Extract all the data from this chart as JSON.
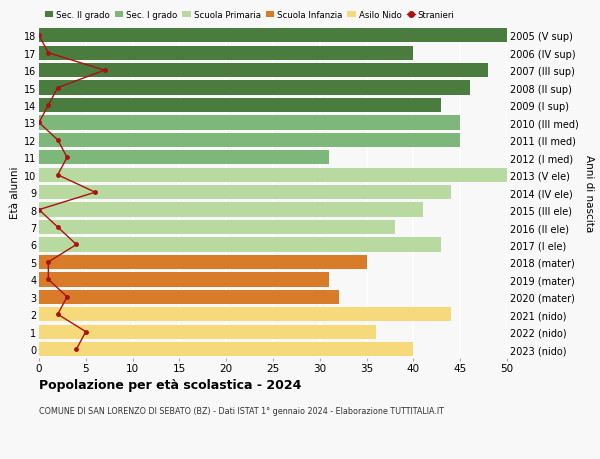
{
  "ages": [
    18,
    17,
    16,
    15,
    14,
    13,
    12,
    11,
    10,
    9,
    8,
    7,
    6,
    5,
    4,
    3,
    2,
    1,
    0
  ],
  "years": [
    "2005 (V sup)",
    "2006 (IV sup)",
    "2007 (III sup)",
    "2008 (II sup)",
    "2009 (I sup)",
    "2010 (III med)",
    "2011 (II med)",
    "2012 (I med)",
    "2013 (V ele)",
    "2014 (IV ele)",
    "2015 (III ele)",
    "2016 (II ele)",
    "2017 (I ele)",
    "2018 (mater)",
    "2019 (mater)",
    "2020 (mater)",
    "2021 (nido)",
    "2022 (nido)",
    "2023 (nido)"
  ],
  "bar_values": [
    50,
    40,
    48,
    46,
    43,
    45,
    45,
    31,
    50,
    44,
    41,
    38,
    43,
    35,
    31,
    32,
    44,
    36,
    40
  ],
  "bar_colors": [
    "#4a7c3f",
    "#4a7c3f",
    "#4a7c3f",
    "#4a7c3f",
    "#4a7c3f",
    "#7db87a",
    "#7db87a",
    "#7db87a",
    "#b8d9a0",
    "#b8d9a0",
    "#b8d9a0",
    "#b8d9a0",
    "#b8d9a0",
    "#d97c2a",
    "#d97c2a",
    "#d97c2a",
    "#f5d97a",
    "#f5d97a",
    "#f5d97a"
  ],
  "stranieri_values": [
    0,
    1,
    7,
    2,
    1,
    0,
    2,
    3,
    2,
    6,
    0,
    2,
    4,
    1,
    1,
    3,
    2,
    5,
    4
  ],
  "stranieri_color": "#aa1111",
  "legend_labels": [
    "Sec. II grado",
    "Sec. I grado",
    "Scuola Primaria",
    "Scuola Infanzia",
    "Asilo Nido",
    "Stranieri"
  ],
  "legend_colors": [
    "#4a7c3f",
    "#7db87a",
    "#b8d9a0",
    "#d97c2a",
    "#f5d97a",
    "#aa1111"
  ],
  "ylabel_left": "Età alunni",
  "ylabel_right": "Anni di nascita",
  "xlim": [
    0,
    50
  ],
  "xticks": [
    0,
    5,
    10,
    15,
    20,
    25,
    30,
    35,
    40,
    45,
    50
  ],
  "title": "Popolazione per età scolastica - 2024",
  "subtitle": "COMUNE DI SAN LORENZO DI SEBATO (BZ) - Dati ISTAT 1° gennaio 2024 - Elaborazione TUTTITALIA.IT",
  "bg_color": "#f8f8f8",
  "bar_height": 0.82
}
